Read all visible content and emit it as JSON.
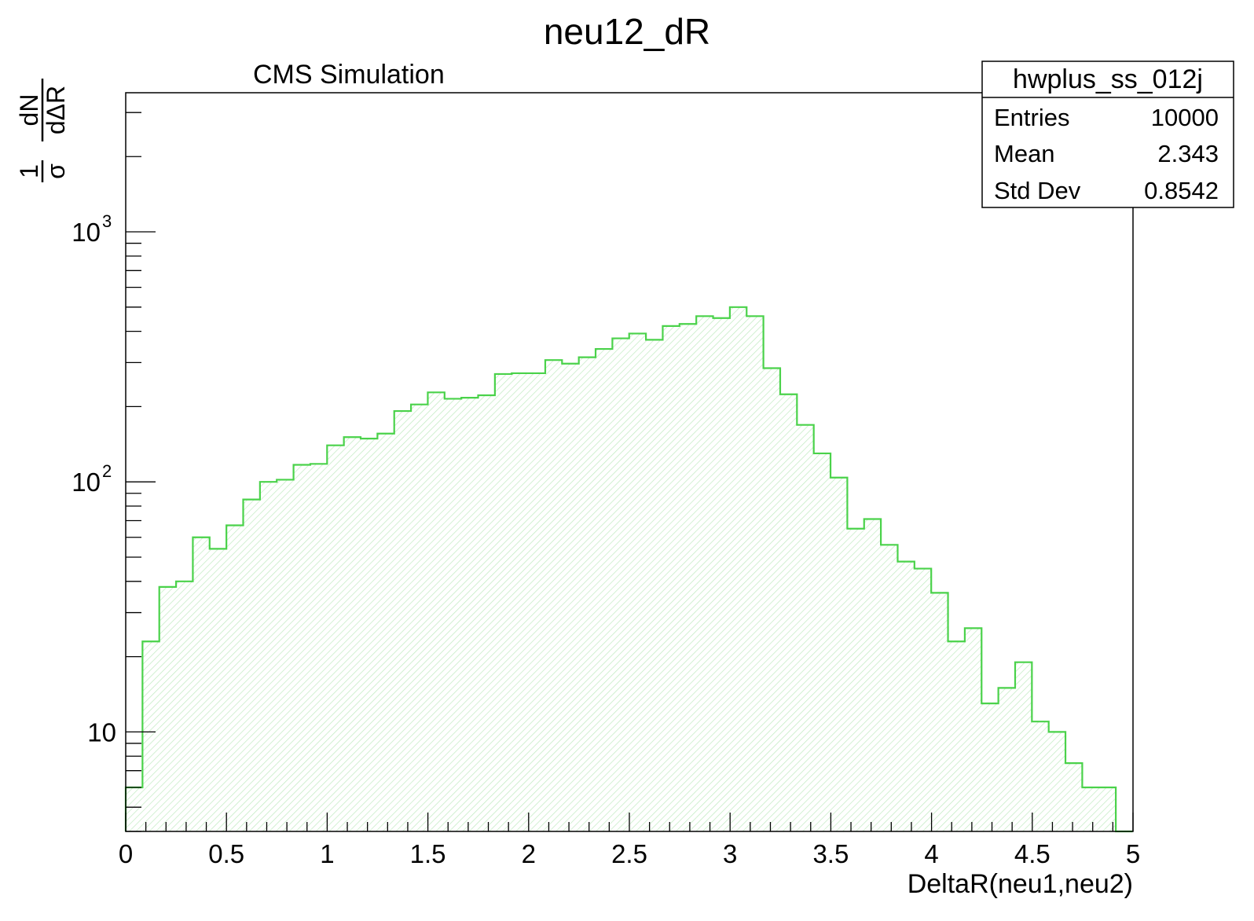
{
  "chart_data": {
    "type": "bar",
    "title": "neu12_dR",
    "annotation": "CMS Simulation",
    "xlabel": "DeltaR(neu1,neu2)",
    "ylabel": {
      "numerator_left": "1",
      "denominator_left": "σ",
      "numerator_right": "dN",
      "denominator_right": "dΔR"
    },
    "x_ticks": [
      "0",
      "0.5",
      "1",
      "1.5",
      "2",
      "2.5",
      "3",
      "3.5",
      "4",
      "4.5",
      "5"
    ],
    "y_ticks": [
      {
        "base": "10",
        "exp": "",
        "value": 10
      },
      {
        "base": "10",
        "exp": "2",
        "value": 100
      },
      {
        "base": "10",
        "exp": "3",
        "value": 1000
      }
    ],
    "xlim": [
      0,
      5
    ],
    "ylim": [
      4,
      3600
    ],
    "log_y": true,
    "grid": false,
    "fill": "diagonal-hatch",
    "series": [
      {
        "bin_edges_start": 0,
        "bin_width": 0.0833,
        "values": [
          6,
          23,
          38,
          40,
          60,
          54,
          67,
          85,
          100,
          102,
          117,
          118,
          140,
          151,
          149,
          156,
          192,
          204,
          228,
          215,
          217,
          222,
          270,
          272,
          272,
          307,
          297,
          315,
          340,
          375,
          392,
          370,
          420,
          428,
          460,
          452,
          500,
          460,
          285,
          224,
          169,
          130,
          104,
          65,
          71,
          56,
          48,
          45,
          36,
          23,
          26,
          13,
          15,
          19,
          11,
          10,
          7.5,
          6,
          6,
          0
        ]
      }
    ],
    "stats_box": {
      "title": "hwplus_ss_012j",
      "rows": [
        {
          "label": "Entries",
          "value": "10000"
        },
        {
          "label": "Mean",
          "value": "2.343"
        },
        {
          "label": "Std Dev",
          "value": "0.8542"
        }
      ]
    },
    "colors": {
      "histogram_line": "#4ad24a",
      "histogram_hatch": "#bfeabf",
      "axis": "#000000"
    }
  }
}
